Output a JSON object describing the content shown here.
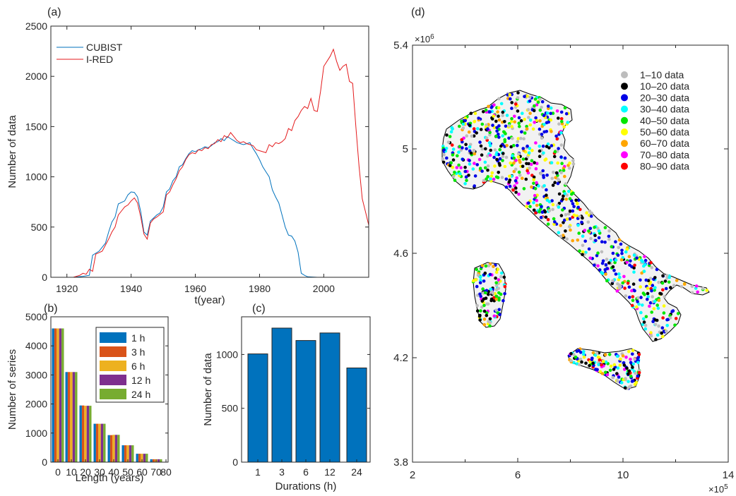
{
  "colors": {
    "cubist": "#0072BD",
    "ired": "#E41A1C",
    "bars": [
      "#0072BD",
      "#D95319",
      "#EDB120",
      "#7E2F8E",
      "#77AC30"
    ],
    "barC": "#0072BD",
    "map": {
      "1-10": "#BDBDBD",
      "10-20": "#000000",
      "20-30": "#0000E6",
      "30-40": "#00FFFF",
      "40-50": "#00E600",
      "50-60": "#FFFF00",
      "60-70": "#FFA500",
      "70-80": "#FF00FF",
      "80-90": "#FF0000"
    }
  },
  "chart_data": [
    {
      "panel": "(a)",
      "type": "line",
      "xlabel": "t(year)",
      "ylabel": "Number of data",
      "xlim": [
        1915,
        2014
      ],
      "ylim": [
        0,
        2500
      ],
      "xticks": [
        1920,
        1940,
        1960,
        1980,
        2000
      ],
      "yticks": [
        0,
        500,
        1000,
        1500,
        2000,
        2500
      ],
      "series": [
        {
          "name": "CUBIST",
          "points": [
            [
              1915,
              0
            ],
            [
              1922,
              0
            ],
            [
              1925,
              10
            ],
            [
              1927,
              20
            ],
            [
              1928,
              220
            ],
            [
              1930,
              260
            ],
            [
              1932,
              340
            ],
            [
              1933,
              450
            ],
            [
              1934,
              550
            ],
            [
              1935,
              600
            ],
            [
              1936,
              730
            ],
            [
              1938,
              760
            ],
            [
              1939,
              820
            ],
            [
              1940,
              850
            ],
            [
              1941,
              845
            ],
            [
              1942,
              800
            ],
            [
              1943,
              650
            ],
            [
              1944,
              450
            ],
            [
              1945,
              420
            ],
            [
              1946,
              560
            ],
            [
              1948,
              620
            ],
            [
              1949,
              640
            ],
            [
              1950,
              700
            ],
            [
              1951,
              850
            ],
            [
              1952,
              880
            ],
            [
              1953,
              960
            ],
            [
              1954,
              1000
            ],
            [
              1955,
              1100
            ],
            [
              1956,
              1120
            ],
            [
              1957,
              1180
            ],
            [
              1958,
              1230
            ],
            [
              1959,
              1260
            ],
            [
              1960,
              1250
            ],
            [
              1961,
              1270
            ],
            [
              1962,
              1280
            ],
            [
              1963,
              1300
            ],
            [
              1964,
              1290
            ],
            [
              1965,
              1310
            ],
            [
              1966,
              1340
            ],
            [
              1967,
              1350
            ],
            [
              1968,
              1380
            ],
            [
              1969,
              1360
            ],
            [
              1970,
              1400
            ],
            [
              1971,
              1380
            ],
            [
              1972,
              1360
            ],
            [
              1973,
              1340
            ],
            [
              1974,
              1330
            ],
            [
              1975,
              1320
            ],
            [
              1976,
              1330
            ],
            [
              1977,
              1340
            ],
            [
              1978,
              1280
            ],
            [
              1979,
              1230
            ],
            [
              1980,
              1170
            ],
            [
              1981,
              1100
            ],
            [
              1982,
              1050
            ],
            [
              1983,
              1000
            ],
            [
              1984,
              870
            ],
            [
              1985,
              800
            ],
            [
              1986,
              740
            ],
            [
              1987,
              620
            ],
            [
              1988,
              500
            ],
            [
              1989,
              420
            ],
            [
              1990,
              410
            ],
            [
              1991,
              360
            ],
            [
              1992,
              250
            ],
            [
              1993,
              40
            ],
            [
              1994,
              20
            ],
            [
              1995,
              5
            ],
            [
              1998,
              0
            ],
            [
              2014,
              0
            ]
          ]
        },
        {
          "name": "I-RED",
          "points": [
            [
              1915,
              0
            ],
            [
              1922,
              0
            ],
            [
              1924,
              20
            ],
            [
              1925,
              40
            ],
            [
              1926,
              30
            ],
            [
              1927,
              80
            ],
            [
              1928,
              60
            ],
            [
              1929,
              230
            ],
            [
              1931,
              260
            ],
            [
              1932,
              320
            ],
            [
              1933,
              380
            ],
            [
              1934,
              450
            ],
            [
              1935,
              500
            ],
            [
              1936,
              620
            ],
            [
              1937,
              660
            ],
            [
              1938,
              700
            ],
            [
              1939,
              720
            ],
            [
              1940,
              760
            ],
            [
              1941,
              790
            ],
            [
              1942,
              740
            ],
            [
              1943,
              600
            ],
            [
              1944,
              430
            ],
            [
              1945,
              380
            ],
            [
              1946,
              540
            ],
            [
              1947,
              580
            ],
            [
              1948,
              600
            ],
            [
              1950,
              650
            ],
            [
              1951,
              820
            ],
            [
              1952,
              850
            ],
            [
              1953,
              920
            ],
            [
              1954,
              980
            ],
            [
              1955,
              1060
            ],
            [
              1956,
              1100
            ],
            [
              1957,
              1170
            ],
            [
              1958,
              1220
            ],
            [
              1959,
              1240
            ],
            [
              1960,
              1230
            ],
            [
              1961,
              1270
            ],
            [
              1962,
              1260
            ],
            [
              1963,
              1290
            ],
            [
              1964,
              1280
            ],
            [
              1965,
              1320
            ],
            [
              1966,
              1330
            ],
            [
              1967,
              1370
            ],
            [
              1968,
              1350
            ],
            [
              1969,
              1410
            ],
            [
              1970,
              1390
            ],
            [
              1971,
              1440
            ],
            [
              1972,
              1400
            ],
            [
              1973,
              1360
            ],
            [
              1974,
              1340
            ],
            [
              1975,
              1350
            ],
            [
              1976,
              1330
            ],
            [
              1977,
              1320
            ],
            [
              1978,
              1310
            ],
            [
              1979,
              1270
            ],
            [
              1980,
              1260
            ],
            [
              1981,
              1250
            ],
            [
              1982,
              1240
            ],
            [
              1983,
              1320
            ],
            [
              1984,
              1300
            ],
            [
              1985,
              1340
            ],
            [
              1986,
              1330
            ],
            [
              1987,
              1350
            ],
            [
              1988,
              1380
            ],
            [
              1989,
              1480
            ],
            [
              1990,
              1460
            ],
            [
              1991,
              1560
            ],
            [
              1992,
              1600
            ],
            [
              1993,
              1660
            ],
            [
              1994,
              1700
            ],
            [
              1995,
              1680
            ],
            [
              1996,
              1780
            ],
            [
              1997,
              1660
            ],
            [
              1998,
              1650
            ],
            [
              1999,
              1850
            ],
            [
              2000,
              2100
            ],
            [
              2002,
              2200
            ],
            [
              2003,
              2270
            ],
            [
              2004,
              2150
            ],
            [
              2005,
              2060
            ],
            [
              2006,
              2100
            ],
            [
              2007,
              2120
            ],
            [
              2008,
              1950
            ],
            [
              2009,
              1930
            ],
            [
              2010,
              1500
            ],
            [
              2011,
              1100
            ],
            [
              2012,
              780
            ],
            [
              2013,
              650
            ],
            [
              2014,
              520
            ]
          ]
        }
      ]
    },
    {
      "panel": "(b)",
      "type": "bar",
      "xlabel": "Length (years)",
      "ylabel": "Number of series",
      "ylim": [
        0,
        5000
      ],
      "yticks": [
        0,
        1000,
        2000,
        3000,
        4000,
        5000
      ],
      "xtick_labels": [
        "0",
        "10",
        "20",
        "30",
        "40",
        "50",
        "60",
        "70",
        "80"
      ],
      "categories": [
        "0",
        "10",
        "20",
        "30",
        "40",
        "50",
        "60",
        "70"
      ],
      "series": [
        {
          "name": "1 h",
          "values": [
            4600,
            3100,
            1950,
            1320,
            930,
            580,
            290,
            100
          ]
        },
        {
          "name": "3 h",
          "values": [
            4600,
            3100,
            1950,
            1320,
            930,
            580,
            290,
            100
          ]
        },
        {
          "name": "6 h",
          "values": [
            4600,
            3100,
            1940,
            1320,
            940,
            580,
            290,
            100
          ]
        },
        {
          "name": "12 h",
          "values": [
            4600,
            3100,
            1940,
            1320,
            940,
            580,
            290,
            100
          ]
        },
        {
          "name": "24 h",
          "values": [
            4600,
            3100,
            1940,
            1320,
            940,
            580,
            290,
            100
          ]
        }
      ]
    },
    {
      "panel": "(c)",
      "type": "bar",
      "xlabel": "Durations (h)",
      "ylabel": "Number of data",
      "ylim": [
        0,
        1350
      ],
      "yticks": [
        0,
        500,
        1000
      ],
      "categories": [
        "1",
        "3",
        "6",
        "12",
        "24"
      ],
      "values": [
        1005,
        1245,
        1130,
        1200,
        875
      ]
    },
    {
      "panel": "(d)",
      "type": "scatter",
      "xlim": [
        200000,
        1400000
      ],
      "ylim": [
        3800000,
        5400000
      ],
      "xticks": [
        2,
        6,
        10,
        14
      ],
      "yticks": [
        3.8,
        4.2,
        4.6,
        5,
        5.4
      ],
      "xexp": "×10",
      "xexp_pow": "5",
      "yexp": "×10",
      "yexp_pow": "6",
      "legend": [
        "1–10 data",
        "10–20 data",
        "20–30 data",
        "30–40 data",
        "40–50 data",
        "50–60 data",
        "60–70 data",
        "70–80 data",
        "80–90 data"
      ]
    }
  ]
}
